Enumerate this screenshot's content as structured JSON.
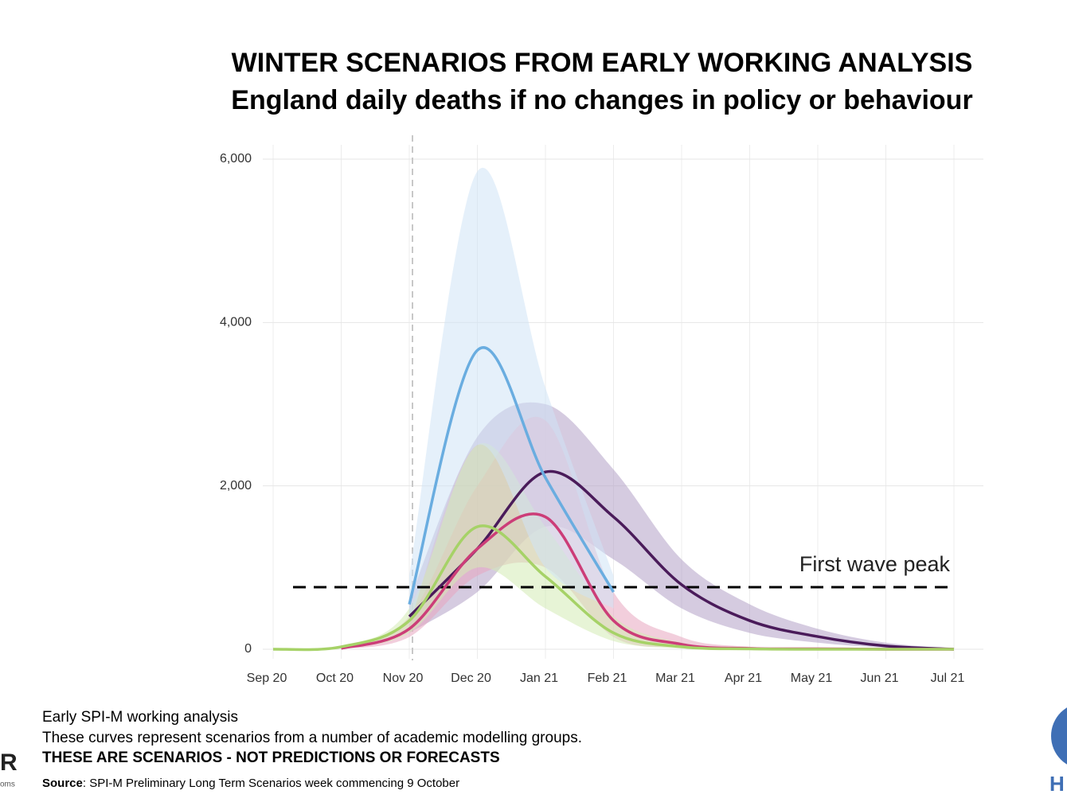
{
  "header": {
    "title": "WINTER SCENARIOS FROM EARLY WORKING ANALYSIS",
    "subtitle": "England daily deaths if no changes in policy or behaviour"
  },
  "chart_data": {
    "type": "line",
    "categories": [
      "Sep 20",
      "Oct 20",
      "Nov 20",
      "Dec 20",
      "Jan 21",
      "Feb 21",
      "Mar 21",
      "Apr 21",
      "May 21",
      "Jun 21",
      "Jul 21"
    ],
    "ylim": [
      0,
      6000
    ],
    "yticks": [
      0,
      {
        "value": 2000,
        "label": "2,000"
      },
      {
        "value": 4000,
        "label": "4,000"
      },
      {
        "value": 6000,
        "label": "6,000"
      }
    ],
    "grid": true,
    "vline_at": "Nov 20",
    "reference_line": {
      "value": 760,
      "label": "First wave peak"
    },
    "series": [
      {
        "color": "#b3a0c6",
        "line_color": "#4a1b5a",
        "values": [
          null,
          null,
          400,
          1230,
          2170,
          1620,
          790,
          350,
          155,
          40,
          0
        ],
        "lower": [
          null,
          null,
          200,
          700,
          1500,
          1100,
          500,
          200,
          80,
          20,
          0
        ],
        "upper": [
          null,
          null,
          600,
          2600,
          3000,
          2200,
          1100,
          550,
          250,
          80,
          10
        ]
      },
      {
        "color": "#e8a6c0",
        "line_color": "#cc3d78",
        "values": [
          null,
          10,
          250,
          1230,
          1620,
          350,
          60,
          10,
          5,
          0,
          0
        ],
        "lower": [
          null,
          0,
          150,
          900,
          1000,
          150,
          20,
          0,
          0,
          0,
          0
        ],
        "upper": [
          null,
          20,
          400,
          2000,
          2800,
          700,
          150,
          30,
          10,
          0,
          0
        ]
      },
      {
        "color": "#d4ebb5",
        "line_color": "#a6d267",
        "values": [
          0,
          30,
          350,
          1500,
          890,
          200,
          30,
          5,
          0,
          0,
          0
        ],
        "lower": [
          0,
          20,
          200,
          1000,
          500,
          100,
          10,
          0,
          0,
          0,
          0
        ],
        "upper": [
          0,
          40,
          500,
          2500,
          1500,
          400,
          80,
          10,
          0,
          0,
          0
        ]
      },
      {
        "color": "#cfe3f5",
        "line_color": "#6aade0",
        "values": [
          null,
          null,
          550,
          3660,
          2100,
          700,
          null,
          null,
          null,
          null,
          null
        ],
        "lower": [
          null,
          null,
          300,
          2500,
          1000,
          500,
          null,
          null,
          null,
          null,
          null
        ],
        "upper": [
          null,
          null,
          900,
          5850,
          3200,
          900,
          null,
          null,
          null,
          null,
          null
        ]
      }
    ]
  },
  "footer": {
    "line1": "Early SPI-M working analysis",
    "line2": "These curves represent scenarios from a number of academic modelling groups.",
    "line3": "THESE ARE SCENARIOS  - NOT PREDICTIONS OR FORECASTS",
    "source_label": "Source",
    "source_text": ": SPI-M Preliminary Long Term Scenarios week commencing 9 October"
  },
  "logos": {
    "left": "R",
    "left_sub": "oms",
    "right": "H"
  }
}
